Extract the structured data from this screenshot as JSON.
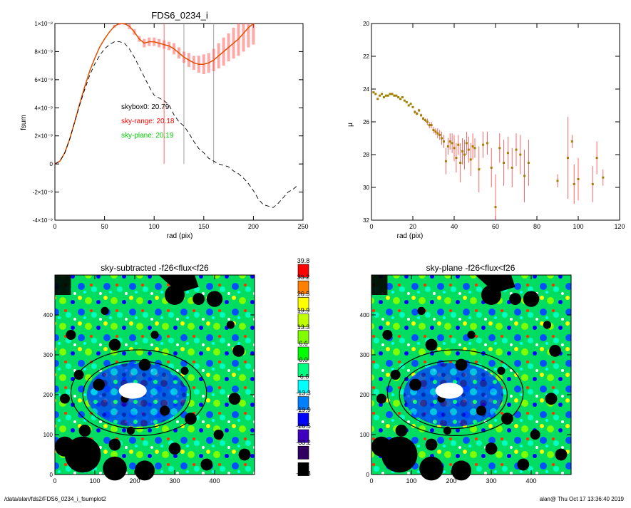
{
  "top_left": {
    "title": "FDS6_0234_i",
    "xlabel": "rad (pix)",
    "ylabel": "fsum",
    "xticks": [
      "0",
      "50",
      "100",
      "150",
      "200",
      "250"
    ],
    "yticks": [
      "1×10⁻⁸",
      "8×10⁻⁹",
      "6×10⁻⁹",
      "4×10⁻⁹",
      "2×10⁻⁹",
      "0",
      "-2×10⁻⁹",
      "-4×10⁻⁹"
    ],
    "annotations": [
      {
        "text": "skybox0: 20.79",
        "color": "#000000"
      },
      {
        "text": "sky-range: 20.18",
        "color": "#ff0000"
      },
      {
        "text": "sky-plane: 20.19",
        "color": "#00cc00"
      }
    ]
  },
  "top_right": {
    "xlabel": "rad (pix)",
    "ylabel": "μ",
    "xticks": [
      "0",
      "20",
      "40",
      "60",
      "80",
      "100",
      "120"
    ],
    "yticks": [
      "20",
      "22",
      "24",
      "26",
      "28",
      "30",
      "32"
    ]
  },
  "bottom_left": {
    "title": "sky-subtracted -f26<flux<f26",
    "xticks": [
      "0",
      "100",
      "200",
      "300",
      "400"
    ],
    "yticks": [
      "0",
      "100",
      "200",
      "300",
      "400"
    ]
  },
  "bottom_right": {
    "title": "sky-plane -f26<flux<f26",
    "xticks": [
      "0",
      "100",
      "200",
      "300",
      "400"
    ],
    "yticks": [
      "0",
      "100",
      "200",
      "300",
      "400"
    ]
  },
  "colorbar": {
    "labels": [
      "39.8",
      "33.2",
      "26.5",
      "19.9",
      "13.3",
      "6.6",
      "0.0",
      "-6.6",
      "-13.3",
      "-19.9",
      "-26.5",
      "-33.2",
      "-39.8"
    ],
    "colors": [
      "#ff0000",
      "#ff8000",
      "#ffff00",
      "#c0ff00",
      "#80ff00",
      "#00ff00",
      "#00ff80",
      "#00ffff",
      "#0080ff",
      "#0000ff",
      "#4000c0",
      "#300060",
      "#000000"
    ]
  },
  "footer": {
    "left": "/data/alan/fds2/FDS6_0234_i_fsumplot2",
    "right": "alan@  Thu Oct 17 13:36:40 2019"
  },
  "chart_data": [
    {
      "type": "line",
      "title": "FDS6_0234_i",
      "xlabel": "rad (pix)",
      "ylabel": "fsum",
      "xlim": [
        0,
        250
      ],
      "ylim": [
        -4e-09,
        1e-08
      ],
      "series": [
        {
          "x": [
            0,
            5,
            10,
            15,
            20,
            25,
            30,
            35,
            40,
            45,
            50,
            55,
            60,
            65,
            70,
            75,
            80,
            85,
            90,
            95,
            100,
            105,
            110,
            115,
            120,
            125,
            130,
            135,
            140,
            145,
            150,
            155,
            160,
            165,
            170,
            175,
            180,
            185,
            190,
            195,
            200
          ],
          "y": [
            0,
            2e-10,
            8e-10,
            1.8e-09,
            3e-09,
            4.3e-09,
            5.5e-09,
            6.6e-09,
            7.5e-09,
            8.3e-09,
            8.9e-09,
            9.4e-09,
            9.8e-09,
            1e-08,
            1e-08,
            9.8e-09,
            9.4e-09,
            8.9e-09,
            8.6e-09,
            8.7e-09,
            8.7e-09,
            8.6e-09,
            8.5e-09,
            8.4e-09,
            8.2e-09,
            7.9e-09,
            7.6e-09,
            7.4e-09,
            7.2e-09,
            7.1e-09,
            7.1e-09,
            7.2e-09,
            7.4e-09,
            7.7e-09,
            8e-09,
            8.3e-09,
            8.6e-09,
            8.9e-09,
            9.3e-09,
            9.7e-09,
            1e-08
          ],
          "err": [
            0,
            0,
            0,
            0,
            0,
            0,
            0,
            0,
            0,
            0,
            0,
            0,
            1e-10,
            1e-10,
            1e-10,
            2e-10,
            2e-10,
            2e-10,
            3e-10,
            3e-10,
            3e-10,
            3e-10,
            3e-10,
            3e-10,
            4e-10,
            4e-10,
            4e-10,
            5e-10,
            5e-10,
            6e-10,
            7e-10,
            7e-10,
            8e-10,
            9e-10,
            1e-09,
            1e-09,
            1.1e-09,
            1.2e-09,
            1.3e-09,
            1.4e-09,
            1.5e-09
          ]
        },
        {
          "x": [
            0,
            5,
            10,
            15,
            20,
            25,
            30,
            35,
            40,
            45,
            50,
            55,
            60,
            65,
            70,
            75,
            80,
            85,
            90,
            95,
            100,
            105,
            110,
            115,
            120,
            125,
            130,
            135,
            140,
            145,
            150,
            155,
            160,
            165,
            170,
            175,
            180,
            185,
            190,
            195,
            200,
            205,
            210,
            215,
            220,
            225,
            230,
            235,
            240,
            245
          ],
          "y": [
            0,
            2e-10,
            8e-10,
            1.8e-09,
            3e-09,
            4.2e-09,
            5.3e-09,
            6.3e-09,
            7.1e-09,
            7.7e-09,
            8.2e-09,
            8.5e-09,
            8.7e-09,
            8.7e-09,
            8.6e-09,
            8.2e-09,
            7.6e-09,
            6.9e-09,
            6.2e-09,
            5.5e-09,
            4.9e-09,
            4.7e-09,
            4.5e-09,
            4.2e-09,
            3.5e-09,
            3e-09,
            2.7e-09,
            2.2e-09,
            1.6e-09,
            1.1e-09,
            8e-10,
            4e-10,
            2e-10,
            0,
            -1e-10,
            -2e-10,
            -5e-10,
            -7e-10,
            -1e-09,
            -1.4e-09,
            -1.9e-09,
            -2.5e-09,
            -2.9e-09,
            -3e-09,
            -3.1e-09,
            -2.8e-09,
            -2.4e-09,
            -2e-09,
            -1.8e-09,
            -1.5e-09
          ]
        }
      ],
      "vlines_x": [
        110,
        130,
        160
      ]
    },
    {
      "type": "scatter",
      "xlabel": "rad (pix)",
      "ylabel": "μ",
      "xlim": [
        0,
        120
      ],
      "ylim": [
        32,
        20
      ],
      "x": [
        1,
        2,
        3,
        4,
        5,
        6,
        7,
        8,
        9,
        10,
        11,
        12,
        13,
        14,
        15,
        16,
        17,
        18,
        19,
        20,
        21,
        22,
        23,
        24,
        25,
        26,
        27,
        28,
        29,
        30,
        31,
        32,
        33,
        34,
        35,
        36,
        37,
        38,
        39,
        40,
        41,
        42,
        43,
        44,
        45,
        46,
        47,
        48,
        49,
        50,
        52,
        54,
        56,
        58,
        60,
        62,
        64,
        66,
        68,
        70,
        72,
        74,
        76,
        90,
        95,
        97,
        98,
        100,
        107,
        109,
        112
      ],
      "y": [
        24.2,
        24.3,
        24.6,
        24.4,
        24.3,
        24.5,
        24.4,
        24.4,
        24.3,
        24.3,
        24.4,
        24.4,
        24.5,
        24.6,
        24.5,
        24.7,
        24.8,
        25.0,
        24.9,
        25.1,
        25.4,
        25.5,
        25.3,
        25.6,
        25.8,
        25.9,
        26.0,
        26.2,
        26.2,
        26.5,
        26.6,
        26.7,
        26.8,
        27.0,
        27.2,
        28.4,
        27.5,
        27.2,
        27.3,
        27.6,
        28.2,
        27.4,
        28.5,
        27.8,
        28.0,
        27.3,
        27.7,
        28.3,
        27.5,
        27.6,
        28.9,
        27.4,
        27.3,
        28.8,
        31.2,
        27.6,
        28.5,
        27.9,
        28.8,
        27.7,
        28.0,
        29.3,
        28.5,
        29.6,
        28.2,
        27.2,
        29.8,
        29.5,
        29.8,
        28.2,
        29.4
      ],
      "err": [
        0,
        0,
        0,
        0,
        0,
        0,
        0,
        0,
        0,
        0,
        0,
        0,
        0,
        0,
        0,
        0,
        0,
        0,
        0,
        0,
        0.1,
        0.1,
        0.1,
        0.1,
        0.1,
        0.1,
        0.2,
        0.2,
        0.2,
        0.2,
        0.2,
        0.3,
        0.3,
        0.4,
        0.4,
        0.8,
        0.5,
        0.5,
        0.6,
        0.8,
        0.9,
        0.6,
        1.2,
        0.8,
        0.9,
        0.7,
        0.8,
        1.0,
        0.8,
        0.6,
        1.4,
        0.8,
        0.7,
        1.2,
        2.0,
        0.9,
        1.4,
        1.0,
        1.2,
        1.0,
        1.2,
        1.6,
        1.4,
        0.4,
        2.5,
        0.4,
        1.2,
        1.3,
        1.1,
        1.0,
        0.5
      ]
    },
    {
      "type": "heatmap",
      "title": "sky-subtracted -f26<flux<f26",
      "xlim": [
        0,
        500
      ],
      "ylim": [
        0,
        500
      ],
      "colorbar": [
        -39.8,
        39.8
      ]
    },
    {
      "type": "heatmap",
      "title": "sky-plane -f26<flux<f26",
      "xlim": [
        0,
        500
      ],
      "ylim": [
        0,
        500
      ],
      "colorbar": [
        -39.8,
        39.8
      ]
    }
  ]
}
